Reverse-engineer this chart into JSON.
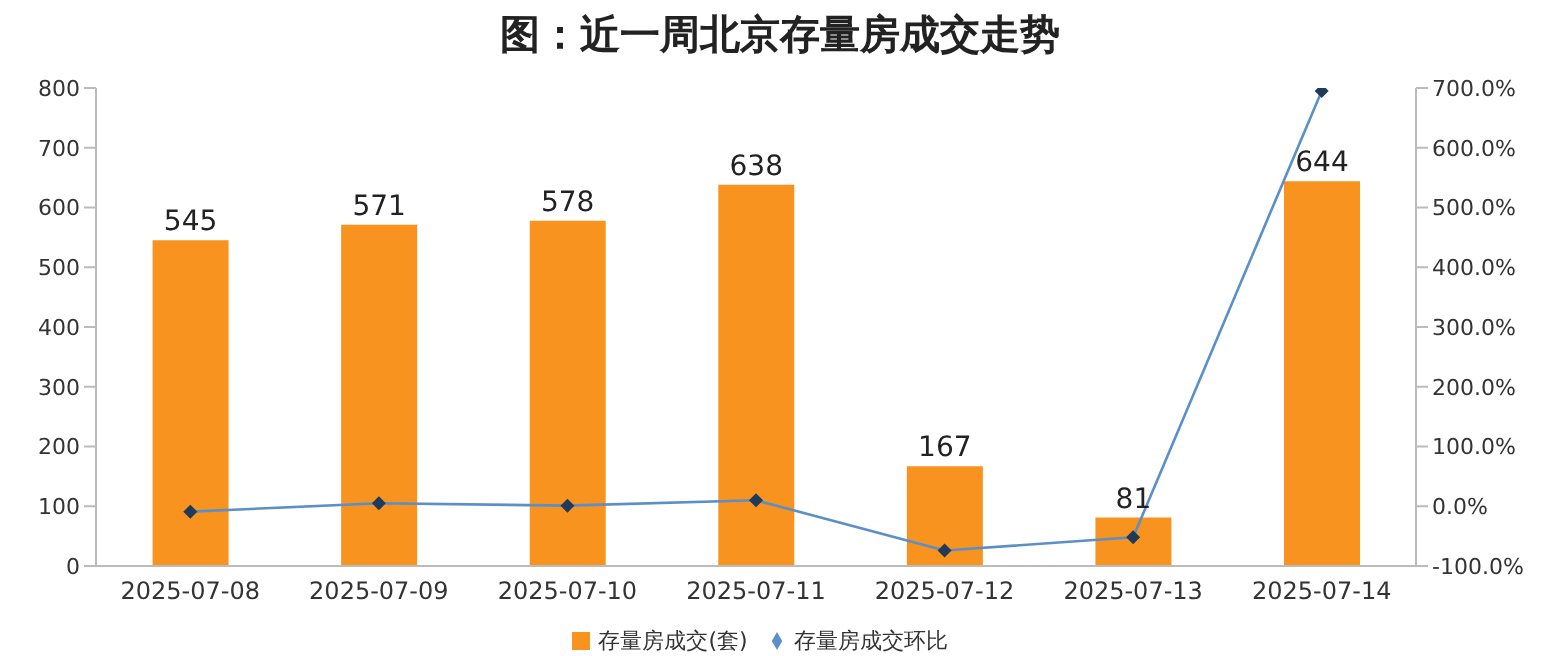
{
  "chart_data": {
    "type": "bar",
    "title": "图：近一周北京存量房成交走势",
    "categories": [
      "2025-07-08",
      "2025-07-09",
      "2025-07-10",
      "2025-07-11",
      "2025-07-12",
      "2025-07-13",
      "2025-07-14"
    ],
    "series": [
      {
        "name": "存量房成交(套)",
        "color": "#f7931e",
        "values": [
          545,
          571,
          578,
          638,
          167,
          81,
          644
        ],
        "value_labels": [
          "545",
          "571",
          "578",
          "638",
          "167",
          "81",
          "644"
        ]
      },
      {
        "name": "存量房成交环比",
        "type": "line",
        "axis": "y2",
        "color": "#5b8fc7",
        "marker": "diamond",
        "values": [
          -9,
          5,
          1,
          10,
          -74,
          -52,
          695
        ]
      }
    ],
    "ylim": [
      0,
      800
    ],
    "yticks": [
      0,
      100,
      200,
      300,
      400,
      500,
      600,
      700,
      800
    ],
    "y2lim": [
      -100,
      700
    ],
    "y2ticks": [
      {
        "value": -100,
        "label": "-100.0%"
      },
      {
        "value": 0,
        "label": "0.0%"
      },
      {
        "value": 100,
        "label": "100.0%"
      },
      {
        "value": 200,
        "label": "200.0%"
      },
      {
        "value": 300,
        "label": "300.0%"
      },
      {
        "value": 400,
        "label": "400.0%"
      },
      {
        "value": 500,
        "label": "500.0%"
      },
      {
        "value": 600,
        "label": "600.0%"
      },
      {
        "value": 700,
        "label": "700.0%"
      }
    ],
    "grid": false,
    "legend": "bottom"
  }
}
